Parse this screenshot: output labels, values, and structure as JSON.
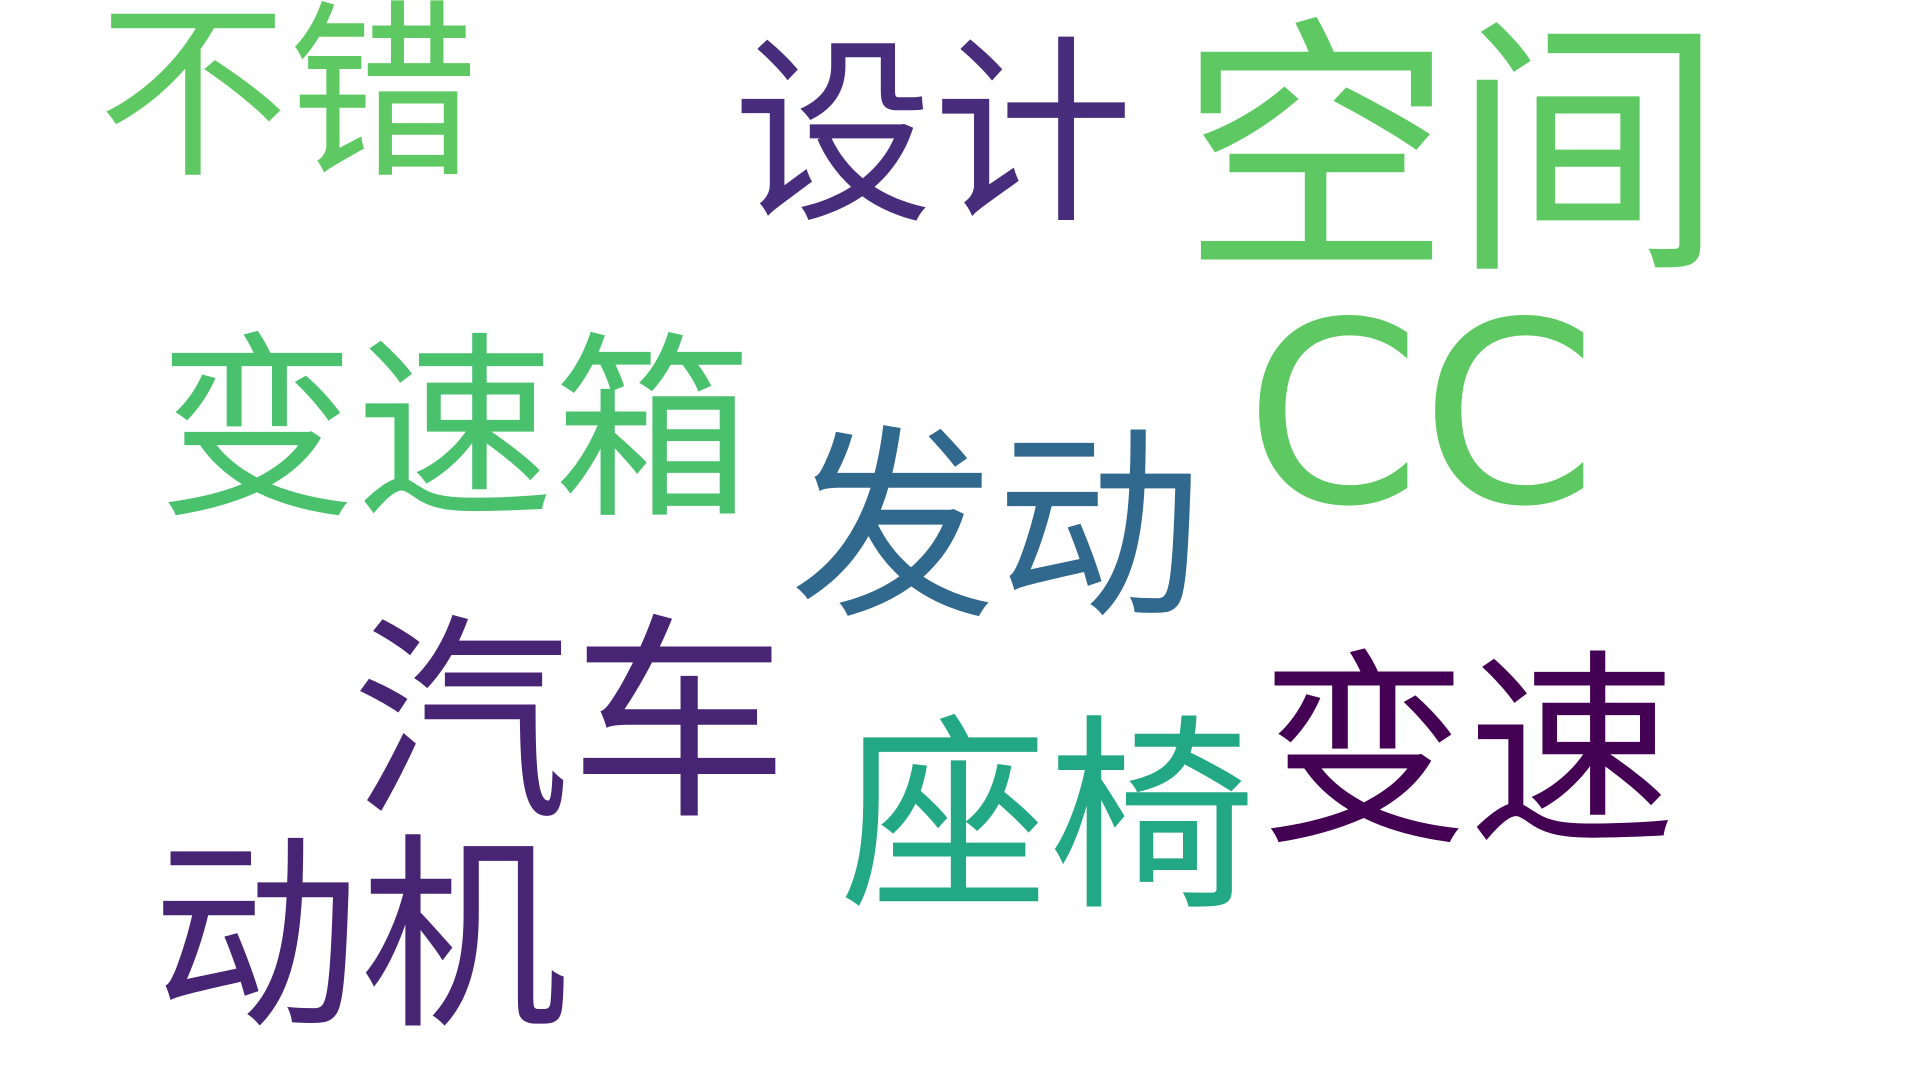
{
  "word_cloud": {
    "words": [
      {
        "id": "kongjian",
        "text": "空间",
        "color": "#5ec962"
      },
      {
        "id": "cc",
        "text": "CC",
        "color": "#5ec962"
      },
      {
        "id": "sheji",
        "text": "设计",
        "color": "#472d7b"
      },
      {
        "id": "bucuo",
        "text": "不错",
        "color": "#5ec962"
      },
      {
        "id": "biansuxiang",
        "text": "变速箱",
        "color": "#4ac16d"
      },
      {
        "id": "fadong",
        "text": "发动",
        "color": "#31688e"
      },
      {
        "id": "qiche",
        "text": "汽车",
        "color": "#482475"
      },
      {
        "id": "zuoyi",
        "text": "座椅",
        "color": "#22a884"
      },
      {
        "id": "biansu",
        "text": "变速",
        "color": "#440154"
      },
      {
        "id": "dongji",
        "text": "动机",
        "color": "#482475"
      }
    ]
  }
}
